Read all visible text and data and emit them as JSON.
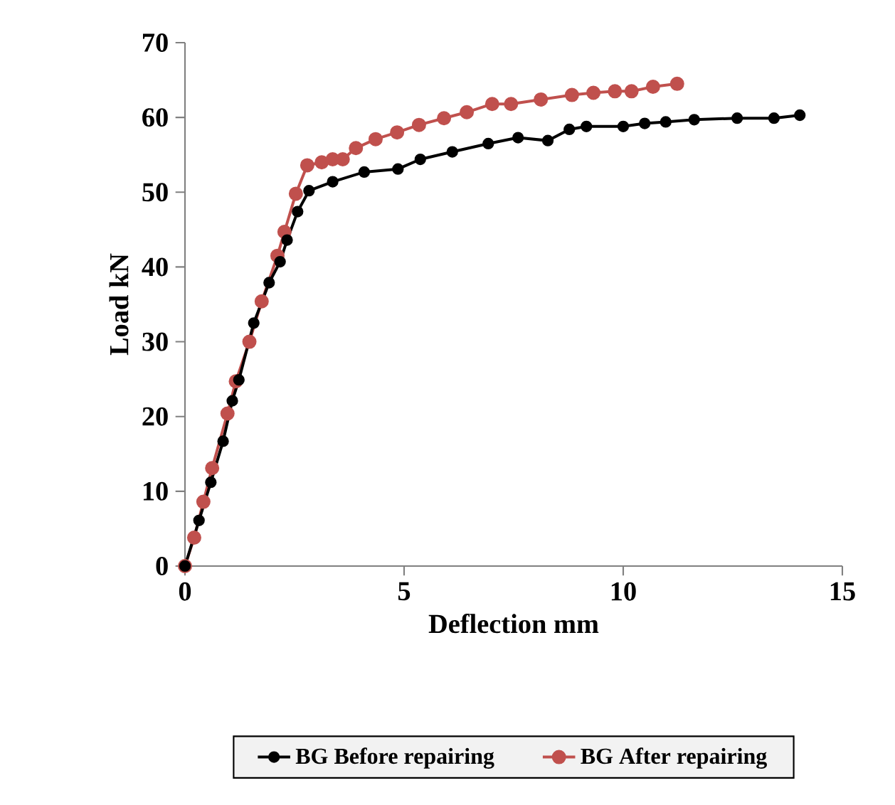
{
  "chart_data": {
    "type": "line",
    "xlabel": "Deflection mm",
    "ylabel": "Load kN",
    "xlim": [
      0,
      15
    ],
    "xticks": [
      0,
      5,
      10,
      15
    ],
    "ylim": [
      0,
      70
    ],
    "yticks": [
      0,
      10,
      20,
      30,
      40,
      50,
      60,
      70
    ],
    "grid": false,
    "legend": "bottom",
    "marker": "circle",
    "line_style": "solid",
    "series": [
      {
        "name": "BG Before repairing",
        "color": "#000000",
        "x": [
          0,
          0.32,
          0.59,
          0.87,
          1.08,
          1.23,
          1.57,
          1.92,
          2.17,
          2.33,
          2.57,
          2.83,
          3.37,
          4.09,
          4.86,
          5.37,
          6.1,
          6.92,
          7.6,
          8.28,
          8.77,
          9.16,
          10.0,
          10.49,
          10.97,
          11.62,
          12.6,
          13.44,
          14.03
        ],
        "values": [
          0,
          6.1,
          11.2,
          16.7,
          22.1,
          24.9,
          32.5,
          37.9,
          40.7,
          43.6,
          47.4,
          50.2,
          51.4,
          52.7,
          53.1,
          54.4,
          55.4,
          56.5,
          57.3,
          56.9,
          58.4,
          58.8,
          58.8,
          59.2,
          59.4,
          59.7,
          59.9,
          59.9,
          60.3
        ]
      },
      {
        "name": "BG After repairing",
        "color": "#c0504d",
        "x": [
          0,
          0.21,
          0.42,
          0.62,
          0.97,
          1.16,
          1.47,
          1.75,
          2.11,
          2.27,
          2.53,
          2.79,
          3.12,
          3.37,
          3.6,
          3.9,
          4.35,
          4.84,
          5.34,
          5.91,
          6.43,
          7.01,
          7.44,
          8.12,
          8.83,
          9.32,
          9.81,
          10.19,
          10.68,
          11.23
        ],
        "values": [
          0,
          3.8,
          8.6,
          13.1,
          20.4,
          24.7,
          30.0,
          35.4,
          41.5,
          44.7,
          49.8,
          53.6,
          54.0,
          54.4,
          54.4,
          55.9,
          57.1,
          58.0,
          59.0,
          59.9,
          60.7,
          61.8,
          61.8,
          62.4,
          63.0,
          63.3,
          63.5,
          63.5,
          64.1,
          64.5
        ]
      }
    ]
  }
}
